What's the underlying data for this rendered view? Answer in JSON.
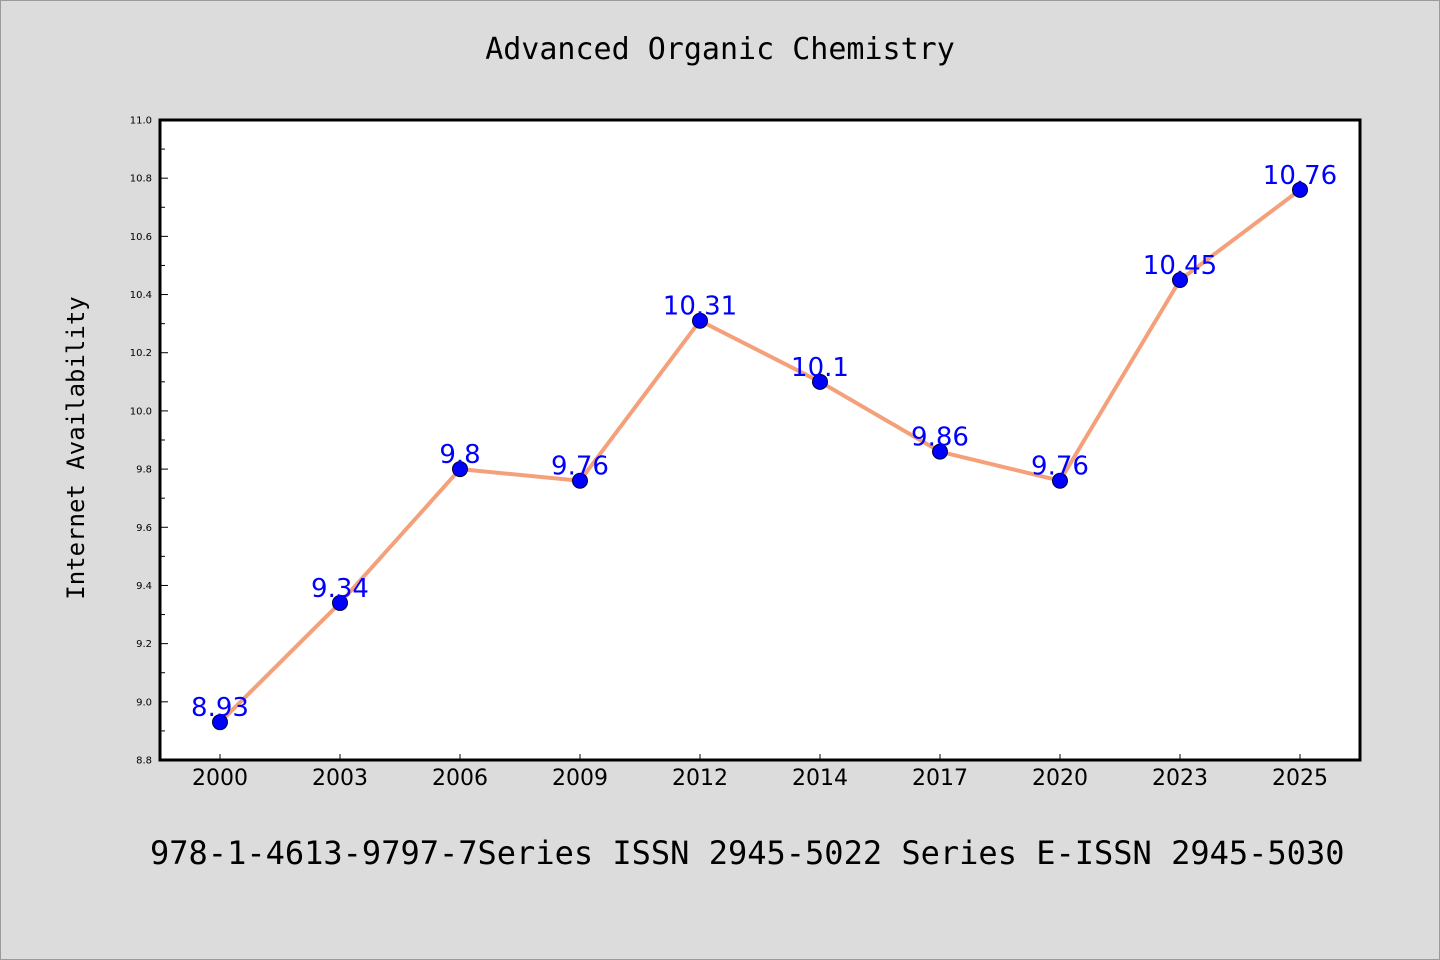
{
  "chart_data": {
    "type": "line",
    "title": "Advanced Organic Chemistry",
    "xlabel": "",
    "ylabel": "Internet Availability",
    "categories": [
      "2000",
      "2003",
      "2006",
      "2009",
      "2012",
      "2014",
      "2017",
      "2020",
      "2023",
      "2025"
    ],
    "series": [
      {
        "values": [
          8.93,
          9.34,
          9.8,
          9.76,
          10.31,
          10.1,
          9.86,
          9.76,
          10.45,
          10.76
        ],
        "labels": [
          "8.93",
          "9.34",
          "9.8",
          "9.76",
          "10.31",
          "10.1",
          "9.86",
          "9.76",
          "10.45",
          "10.76"
        ]
      }
    ],
    "ylim": [
      8.8,
      11.0
    ],
    "yticks": [
      "8.8",
      "9.0",
      "9.2",
      "9.4",
      "9.6",
      "9.8",
      "10.0",
      "10.2",
      "10.4",
      "10.6",
      "10.8",
      "11.0"
    ],
    "grid": false,
    "colors": {
      "line": "#f4a07a",
      "marker": "#0000ff",
      "data_label": "#0000ff",
      "background": "#dcdcdc",
      "plot_area": "#ffffff"
    }
  },
  "footer": {
    "text": "978-1-4613-9797-7Series ISSN 2945-5022 Series E-ISSN 2945-5030"
  }
}
